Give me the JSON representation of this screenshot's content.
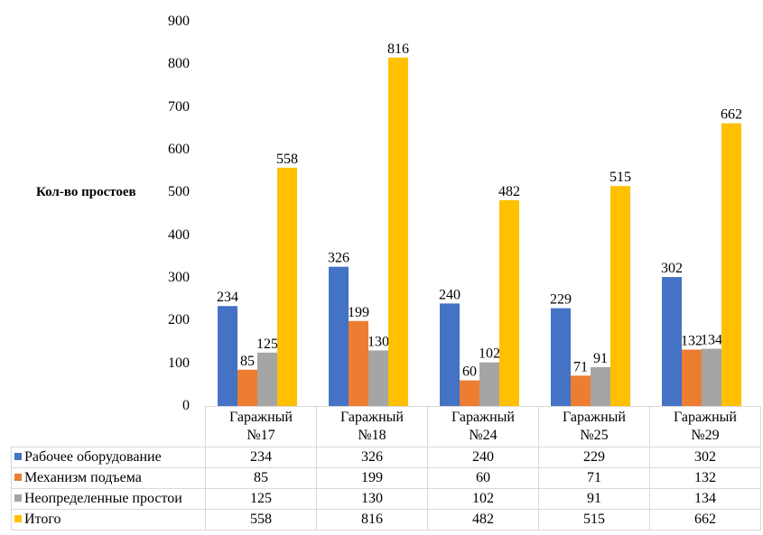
{
  "chart_data": {
    "type": "bar",
    "title": "",
    "xlabel": "",
    "ylabel": "Кол-во простоев",
    "ylim": [
      0,
      900
    ],
    "yticks": [
      0,
      100,
      200,
      300,
      400,
      500,
      600,
      700,
      800,
      900
    ],
    "grid": false,
    "legend": "data-table",
    "categories": [
      {
        "line1": "Гаражный",
        "line2": "№17"
      },
      {
        "line1": "Гаражный",
        "line2": "№18"
      },
      {
        "line1": "Гаражный",
        "line2": "№24"
      },
      {
        "line1": "Гаражный",
        "line2": "№25"
      },
      {
        "line1": "Гаражный",
        "line2": "№29"
      }
    ],
    "series": [
      {
        "name": "Рабочее оборудование",
        "color": "#4472C4",
        "values": [
          234,
          326,
          240,
          229,
          302
        ]
      },
      {
        "name": "Механизм подъема",
        "color": "#ED7D31",
        "values": [
          85,
          199,
          60,
          71,
          132
        ]
      },
      {
        "name": "Неопределенные простои",
        "color": "#A5A5A5",
        "values": [
          125,
          130,
          102,
          91,
          134
        ]
      },
      {
        "name": "Итого",
        "color": "#FFC000",
        "values": [
          558,
          816,
          482,
          515,
          662
        ]
      }
    ]
  }
}
